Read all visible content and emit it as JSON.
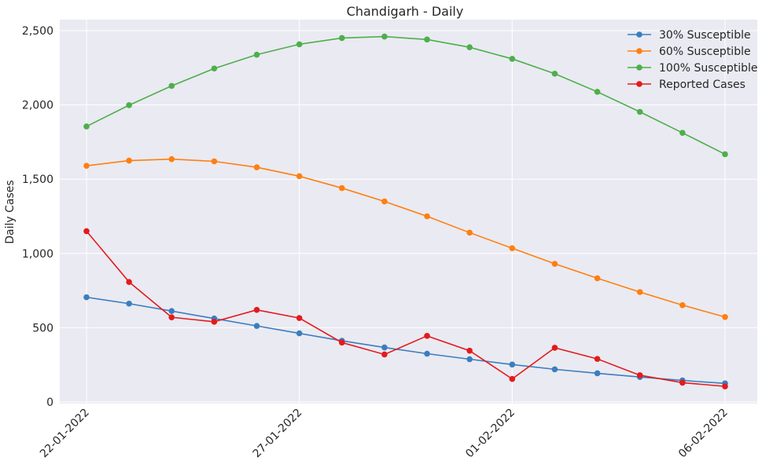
{
  "chart_data": {
    "type": "line",
    "title": "Chandigarh - Daily",
    "xlabel": "",
    "ylabel": "Daily Cases",
    "x": [
      "22-01-2022",
      "23-01-2022",
      "24-01-2022",
      "25-01-2022",
      "26-01-2022",
      "27-01-2022",
      "28-01-2022",
      "29-01-2022",
      "30-01-2022",
      "31-01-2022",
      "01-02-2022",
      "02-02-2022",
      "03-02-2022",
      "04-02-2022",
      "05-02-2022",
      "06-02-2022"
    ],
    "xticks": [
      "22-01-2022",
      "27-01-2022",
      "01-02-2022",
      "06-02-2022"
    ],
    "xtick_indices": [
      0,
      5,
      10,
      15
    ],
    "ylim": [
      0,
      2580
    ],
    "yticks": [
      0,
      500,
      1000,
      1500,
      2000,
      2500
    ],
    "ytick_labels": [
      "0",
      "500",
      "1,000",
      "1,500",
      "2,000",
      "2,500"
    ],
    "grid": true,
    "legend_position": "top-right",
    "series": [
      {
        "name": "30% Susceptible",
        "color": "#3a7ebf",
        "values": [
          705,
          662,
          612,
          562,
          512,
          462,
          412,
          367,
          325,
          288,
          252,
          220,
          193,
          168,
          145,
          125
        ]
      },
      {
        "name": "60% Susceptible",
        "color": "#ff7f0e",
        "values": [
          1590,
          1625,
          1635,
          1620,
          1580,
          1520,
          1440,
          1350,
          1250,
          1140,
          1035,
          930,
          833,
          740,
          652,
          572
        ]
      },
      {
        "name": "100% Susceptible",
        "color": "#4daf4a",
        "values": [
          1855,
          1998,
          2128,
          2245,
          2338,
          2408,
          2450,
          2460,
          2440,
          2388,
          2310,
          2210,
          2088,
          1953,
          1812,
          1668
        ]
      },
      {
        "name": "Reported Cases",
        "color": "#e41a1c",
        "values": [
          1150,
          808,
          570,
          540,
          620,
          565,
          400,
          320,
          445,
          345,
          155,
          365,
          290,
          180,
          130,
          105
        ]
      }
    ]
  }
}
